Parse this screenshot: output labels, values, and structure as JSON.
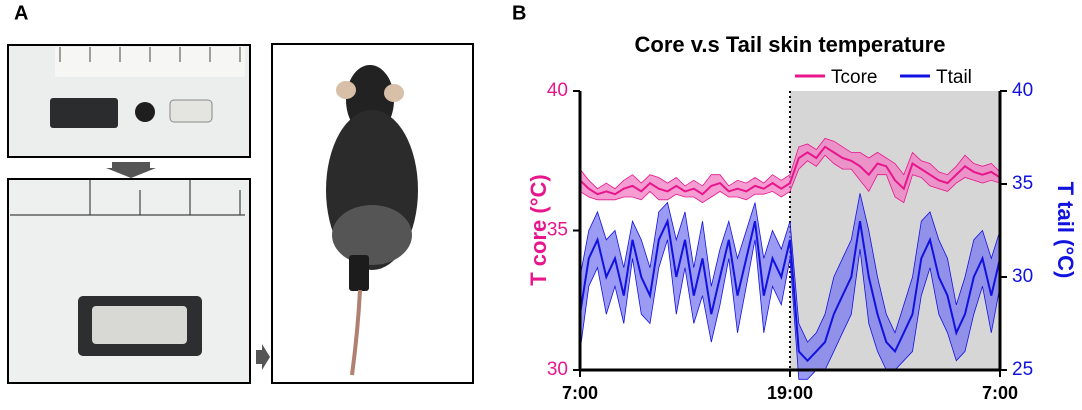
{
  "panels": [
    "A",
    "B"
  ],
  "chart_data": {
    "type": "line",
    "title": "Core v.s Tail skin temperature",
    "ylabel": "T core (°C)",
    "y2label": "T tail (°C)",
    "x": [
      0,
      0.5,
      1,
      1.5,
      2,
      2.5,
      3,
      3.5,
      4,
      4.5,
      5,
      5.5,
      6,
      6.5,
      7,
      7.5,
      8,
      8.5,
      9,
      9.5,
      10,
      10.5,
      11,
      11.5,
      12,
      12.5,
      13,
      13.5,
      14,
      14.5,
      15,
      15.5,
      16,
      16.5,
      17,
      17.5,
      18,
      18.5,
      19,
      19.5,
      20,
      20.5,
      21,
      21.5,
      22,
      22.5,
      23,
      23.5,
      24
    ],
    "xlim": [
      0,
      24
    ],
    "xticks": [
      {
        "value": 0,
        "label": "7:00"
      },
      {
        "value": 12,
        "label": "19:00"
      },
      {
        "value": 24,
        "label": "7:00"
      }
    ],
    "ylim": [
      30,
      40
    ],
    "yticks": [
      30,
      35,
      40
    ],
    "y2lim": [
      25,
      40
    ],
    "y2ticks": [
      25,
      30,
      35,
      40
    ],
    "shaded_region": [
      12,
      24
    ],
    "legend": "top-right",
    "series": [
      {
        "name": "Tcore",
        "color": "#e8168c",
        "band_color": "#f27cc4",
        "values": [
          36.8,
          36.5,
          36.3,
          36.4,
          36.3,
          36.5,
          36.6,
          36.4,
          36.7,
          36.5,
          36.4,
          36.6,
          36.4,
          36.5,
          36.3,
          36.6,
          36.7,
          36.4,
          36.5,
          36.4,
          36.6,
          36.5,
          36.7,
          36.5,
          36.7,
          37.6,
          37.8,
          37.6,
          38.0,
          37.8,
          37.6,
          37.5,
          37.3,
          37.0,
          37.4,
          37.3,
          36.8,
          36.5,
          37.4,
          37.2,
          37.0,
          36.8,
          36.7,
          37.0,
          37.3,
          37.1,
          37.0,
          37.1,
          36.9
        ],
        "error": [
          0.4,
          0.3,
          0.2,
          0.3,
          0.2,
          0.3,
          0.4,
          0.3,
          0.3,
          0.4,
          0.3,
          0.3,
          0.2,
          0.3,
          0.3,
          0.4,
          0.3,
          0.2,
          0.3,
          0.3,
          0.3,
          0.2,
          0.3,
          0.3,
          0.3,
          0.4,
          0.3,
          0.3,
          0.3,
          0.4,
          0.4,
          0.3,
          0.5,
          0.6,
          0.4,
          0.3,
          0.6,
          0.5,
          0.4,
          0.3,
          0.4,
          0.3,
          0.3,
          0.3,
          0.4,
          0.3,
          0.3,
          0.3,
          0.2
        ]
      },
      {
        "name": "Ttail",
        "color": "#1212e0",
        "band_color": "#7a7af0",
        "axis": "y2",
        "values": [
          28,
          31,
          32,
          30,
          31,
          29,
          32,
          30,
          29,
          32,
          33,
          30,
          32,
          29,
          31,
          28,
          30,
          32,
          29,
          31,
          33,
          29,
          31,
          30,
          32,
          26,
          25.5,
          26,
          26.5,
          28,
          29,
          30,
          33,
          30,
          28,
          26.5,
          26,
          27,
          28,
          31,
          32,
          30,
          29,
          27,
          28,
          30,
          31,
          29,
          31
        ],
        "error": [
          2,
          1.5,
          1.5,
          2,
          1.5,
          1.5,
          1,
          2,
          1.5,
          1.5,
          1,
          2,
          1.5,
          1.5,
          2,
          1.5,
          1.5,
          1,
          2,
          1.5,
          1,
          2,
          1.5,
          1.5,
          1,
          1.5,
          1,
          1,
          1.5,
          2,
          2,
          2,
          1.5,
          2.5,
          2,
          1.5,
          1,
          1.5,
          2,
          2,
          1.5,
          2,
          2,
          1.5,
          2,
          2,
          1.5,
          2,
          1.5
        ]
      }
    ]
  }
}
